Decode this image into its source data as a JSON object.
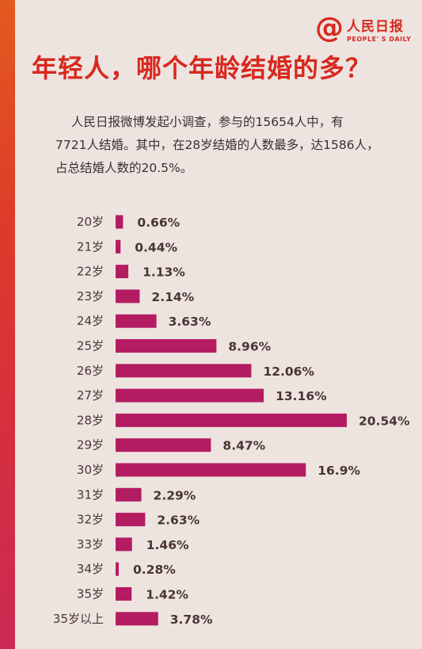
{
  "logo": {
    "at": "@",
    "name": "人民日报",
    "sub": "PEOPLE' S DAILY"
  },
  "headline": "年轻人，哪个年龄结婚的多？",
  "intro": [
    "人民日报微博发起小调查，参与的15654人中，有",
    "7721人结婚。其中，在28岁结婚的人数最多，达1586人，",
    "占总结婚人数的20.5%。"
  ],
  "colors": {
    "bar": "#b41c62",
    "headline": "#d8281f",
    "stripe": "#dd3b2a"
  },
  "chart_data": {
    "type": "bar",
    "orientation": "horizontal",
    "categories": [
      "20岁",
      "21岁",
      "22岁",
      "23岁",
      "24岁",
      "25岁",
      "26岁",
      "27岁",
      "28岁",
      "29岁",
      "30岁",
      "31岁",
      "32岁",
      "33岁",
      "34岁",
      "35岁",
      "35岁以上"
    ],
    "values": [
      0.66,
      0.44,
      1.13,
      2.14,
      3.63,
      8.96,
      12.06,
      13.16,
      20.54,
      8.47,
      16.9,
      2.29,
      2.63,
      1.46,
      0.28,
      1.42,
      3.78
    ],
    "labels": [
      "0.66%",
      "0.44%",
      "1.13%",
      "2.14%",
      "3.63%",
      "8.96%",
      "12.06%",
      "13.16%",
      "20.54%",
      "8.47%",
      "16.9%",
      "2.29%",
      "2.63%",
      "1.46%",
      "0.28%",
      "1.42%",
      "3.78%"
    ],
    "unit": "%",
    "xlim": [
      0,
      21
    ]
  }
}
